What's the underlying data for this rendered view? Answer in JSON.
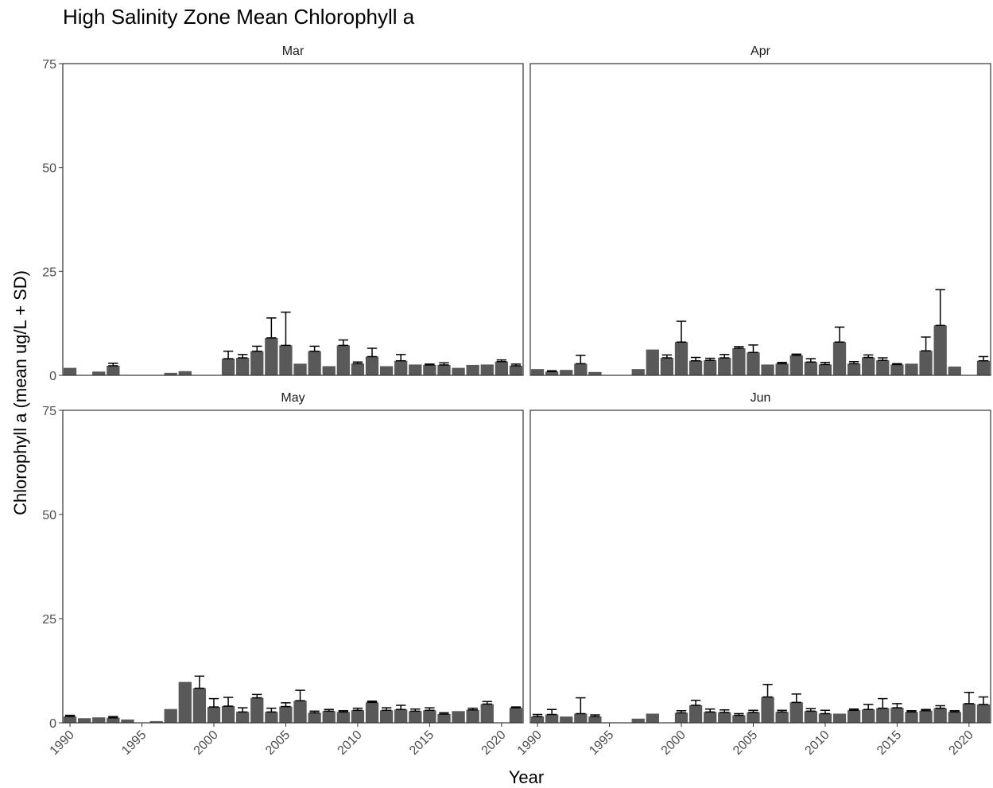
{
  "chart_data": {
    "type": "bar",
    "title": "High Salinity Zone Mean Chlorophyll a",
    "xlabel": "Year",
    "ylabel": "Chlorophyll a (mean ug/L + SD)",
    "ylim": [
      0,
      75
    ],
    "yticks": [
      0,
      25,
      50,
      75
    ],
    "xlim": [
      1989.5,
      2021.5
    ],
    "xticks": [
      1990,
      1995,
      2000,
      2005,
      2010,
      2015,
      2020
    ],
    "grid": false,
    "error_bars": "SD",
    "colors": {
      "bar": "#595959",
      "frame": "#333333",
      "tick_label": "#4d4d4d"
    },
    "panels": [
      {
        "label": "Mar",
        "bars": [
          {
            "x": 1990,
            "y": 1.8,
            "sd": 0
          },
          {
            "x": 1992,
            "y": 0.9,
            "sd": 0
          },
          {
            "x": 1993,
            "y": 2.3,
            "sd": 0.6
          },
          {
            "x": 1997,
            "y": 0.6,
            "sd": 0
          },
          {
            "x": 1998,
            "y": 1.0,
            "sd": 0
          },
          {
            "x": 2001,
            "y": 4.0,
            "sd": 1.8
          },
          {
            "x": 2002,
            "y": 4.2,
            "sd": 0.8
          },
          {
            "x": 2003,
            "y": 5.8,
            "sd": 1.2
          },
          {
            "x": 2004,
            "y": 9.0,
            "sd": 4.8
          },
          {
            "x": 2005,
            "y": 7.2,
            "sd": 8.0
          },
          {
            "x": 2006,
            "y": 2.8,
            "sd": 0
          },
          {
            "x": 2007,
            "y": 5.8,
            "sd": 1.2
          },
          {
            "x": 2008,
            "y": 2.2,
            "sd": 0
          },
          {
            "x": 2009,
            "y": 7.2,
            "sd": 1.3
          },
          {
            "x": 2010,
            "y": 2.8,
            "sd": 0.4
          },
          {
            "x": 2011,
            "y": 4.5,
            "sd": 2.0
          },
          {
            "x": 2012,
            "y": 2.2,
            "sd": 0
          },
          {
            "x": 2013,
            "y": 3.5,
            "sd": 1.5
          },
          {
            "x": 2014,
            "y": 2.6,
            "sd": 0
          },
          {
            "x": 2015,
            "y": 2.5,
            "sd": 0.2
          },
          {
            "x": 2016,
            "y": 2.5,
            "sd": 0.5
          },
          {
            "x": 2017,
            "y": 1.8,
            "sd": 0
          },
          {
            "x": 2018,
            "y": 2.5,
            "sd": 0
          },
          {
            "x": 2019,
            "y": 2.6,
            "sd": 0
          },
          {
            "x": 2020,
            "y": 3.3,
            "sd": 0.4
          },
          {
            "x": 2021,
            "y": 2.3,
            "sd": 0.4
          }
        ]
      },
      {
        "label": "Apr",
        "bars": [
          {
            "x": 1990,
            "y": 1.5,
            "sd": 0
          },
          {
            "x": 1991,
            "y": 0.9,
            "sd": 0.2
          },
          {
            "x": 1992,
            "y": 1.3,
            "sd": 0
          },
          {
            "x": 1993,
            "y": 2.8,
            "sd": 2.0
          },
          {
            "x": 1994,
            "y": 0.8,
            "sd": 0
          },
          {
            "x": 1997,
            "y": 1.5,
            "sd": 0
          },
          {
            "x": 1998,
            "y": 6.2,
            "sd": 0
          },
          {
            "x": 1999,
            "y": 4.2,
            "sd": 0.7
          },
          {
            "x": 2000,
            "y": 8.0,
            "sd": 5.0
          },
          {
            "x": 2001,
            "y": 3.5,
            "sd": 0.8
          },
          {
            "x": 2002,
            "y": 3.6,
            "sd": 0.5
          },
          {
            "x": 2003,
            "y": 4.2,
            "sd": 0.8
          },
          {
            "x": 2004,
            "y": 6.5,
            "sd": 0.4
          },
          {
            "x": 2005,
            "y": 5.5,
            "sd": 1.8
          },
          {
            "x": 2006,
            "y": 2.6,
            "sd": 0
          },
          {
            "x": 2007,
            "y": 2.8,
            "sd": 0.3
          },
          {
            "x": 2008,
            "y": 4.8,
            "sd": 0.3
          },
          {
            "x": 2009,
            "y": 3.2,
            "sd": 0.8
          },
          {
            "x": 2010,
            "y": 2.6,
            "sd": 0.5
          },
          {
            "x": 2011,
            "y": 8.0,
            "sd": 3.6
          },
          {
            "x": 2012,
            "y": 2.8,
            "sd": 0.5
          },
          {
            "x": 2013,
            "y": 4.3,
            "sd": 0.6
          },
          {
            "x": 2014,
            "y": 3.6,
            "sd": 0.6
          },
          {
            "x": 2015,
            "y": 2.6,
            "sd": 0.2
          },
          {
            "x": 2016,
            "y": 2.8,
            "sd": 0
          },
          {
            "x": 2017,
            "y": 5.9,
            "sd": 3.3
          },
          {
            "x": 2018,
            "y": 12.0,
            "sd": 8.6
          },
          {
            "x": 2019,
            "y": 2.1,
            "sd": 0
          },
          {
            "x": 2021,
            "y": 3.5,
            "sd": 1.0
          }
        ]
      },
      {
        "label": "May",
        "bars": [
          {
            "x": 1990,
            "y": 1.5,
            "sd": 0.3
          },
          {
            "x": 1991,
            "y": 1.1,
            "sd": 0
          },
          {
            "x": 1992,
            "y": 1.3,
            "sd": 0
          },
          {
            "x": 1993,
            "y": 1.2,
            "sd": 0.3
          },
          {
            "x": 1994,
            "y": 0.8,
            "sd": 0
          },
          {
            "x": 1996,
            "y": 0.4,
            "sd": 0
          },
          {
            "x": 1997,
            "y": 3.3,
            "sd": 0
          },
          {
            "x": 1998,
            "y": 9.8,
            "sd": 0
          },
          {
            "x": 1999,
            "y": 8.3,
            "sd": 2.9
          },
          {
            "x": 2000,
            "y": 3.8,
            "sd": 2.0
          },
          {
            "x": 2001,
            "y": 4.0,
            "sd": 2.1
          },
          {
            "x": 2002,
            "y": 2.6,
            "sd": 1.0
          },
          {
            "x": 2003,
            "y": 6.0,
            "sd": 0.8
          },
          {
            "x": 2004,
            "y": 2.6,
            "sd": 0.9
          },
          {
            "x": 2005,
            "y": 3.9,
            "sd": 0.9
          },
          {
            "x": 2006,
            "y": 5.3,
            "sd": 2.5
          },
          {
            "x": 2007,
            "y": 2.4,
            "sd": 0.4
          },
          {
            "x": 2008,
            "y": 2.8,
            "sd": 0.4
          },
          {
            "x": 2009,
            "y": 2.6,
            "sd": 0.3
          },
          {
            "x": 2010,
            "y": 3.0,
            "sd": 0.5
          },
          {
            "x": 2011,
            "y": 4.9,
            "sd": 0.3
          },
          {
            "x": 2012,
            "y": 3.0,
            "sd": 0.6
          },
          {
            "x": 2013,
            "y": 3.2,
            "sd": 1.0
          },
          {
            "x": 2014,
            "y": 2.8,
            "sd": 0.5
          },
          {
            "x": 2015,
            "y": 3.0,
            "sd": 0.6
          },
          {
            "x": 2016,
            "y": 2.1,
            "sd": 0.3
          },
          {
            "x": 2017,
            "y": 2.8,
            "sd": 0
          },
          {
            "x": 2018,
            "y": 3.1,
            "sd": 0.4
          },
          {
            "x": 2019,
            "y": 4.5,
            "sd": 0.6
          },
          {
            "x": 2021,
            "y": 3.6,
            "sd": 0.2
          }
        ]
      },
      {
        "label": "Jun",
        "bars": [
          {
            "x": 1990,
            "y": 1.5,
            "sd": 0.5
          },
          {
            "x": 1991,
            "y": 2.0,
            "sd": 1.2
          },
          {
            "x": 1992,
            "y": 1.5,
            "sd": 0
          },
          {
            "x": 1993,
            "y": 2.2,
            "sd": 3.8
          },
          {
            "x": 1994,
            "y": 1.5,
            "sd": 0.4
          },
          {
            "x": 1997,
            "y": 1.0,
            "sd": 0
          },
          {
            "x": 1998,
            "y": 2.2,
            "sd": 0
          },
          {
            "x": 2000,
            "y": 2.4,
            "sd": 0.5
          },
          {
            "x": 2001,
            "y": 4.2,
            "sd": 1.2
          },
          {
            "x": 2002,
            "y": 2.6,
            "sd": 0.7
          },
          {
            "x": 2003,
            "y": 2.5,
            "sd": 0.6
          },
          {
            "x": 2004,
            "y": 1.8,
            "sd": 0.4
          },
          {
            "x": 2005,
            "y": 2.5,
            "sd": 0.5
          },
          {
            "x": 2006,
            "y": 6.2,
            "sd": 3.0
          },
          {
            "x": 2007,
            "y": 2.6,
            "sd": 0.4
          },
          {
            "x": 2008,
            "y": 4.9,
            "sd": 2.0
          },
          {
            "x": 2009,
            "y": 2.8,
            "sd": 0.6
          },
          {
            "x": 2010,
            "y": 2.2,
            "sd": 0.8
          },
          {
            "x": 2011,
            "y": 2.2,
            "sd": 0
          },
          {
            "x": 2012,
            "y": 3.0,
            "sd": 0.3
          },
          {
            "x": 2013,
            "y": 3.2,
            "sd": 1.2
          },
          {
            "x": 2014,
            "y": 3.5,
            "sd": 2.3
          },
          {
            "x": 2015,
            "y": 3.6,
            "sd": 1.0
          },
          {
            "x": 2016,
            "y": 2.6,
            "sd": 0.3
          },
          {
            "x": 2017,
            "y": 2.9,
            "sd": 0.3
          },
          {
            "x": 2018,
            "y": 3.5,
            "sd": 0.6
          },
          {
            "x": 2019,
            "y": 2.6,
            "sd": 0.3
          },
          {
            "x": 2020,
            "y": 4.6,
            "sd": 2.7
          },
          {
            "x": 2021,
            "y": 4.4,
            "sd": 1.8
          }
        ]
      }
    ]
  }
}
